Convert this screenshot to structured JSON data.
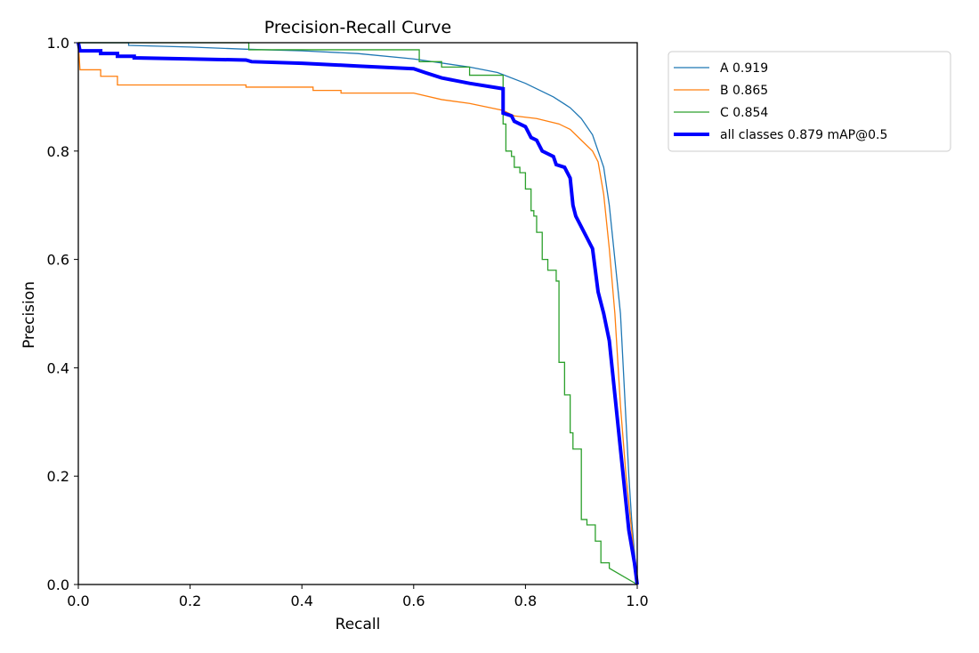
{
  "chart_data": {
    "type": "line",
    "title": "Precision-Recall Curve",
    "xlabel": "Recall",
    "ylabel": "Precision",
    "xlim": [
      0,
      1
    ],
    "ylim": [
      0,
      1
    ],
    "x_ticks": [
      "0.0",
      "0.2",
      "0.4",
      "0.6",
      "0.8",
      "1.0"
    ],
    "y_ticks": [
      "0.0",
      "0.2",
      "0.4",
      "0.6",
      "0.8",
      "1.0"
    ],
    "grid": false,
    "legend_position": "outside-right-top",
    "series": [
      {
        "name": "A 0.919",
        "color": "#1f77b4",
        "width": 1.3,
        "points": [
          [
            0,
            1.0
          ],
          [
            0.09,
            1.0
          ],
          [
            0.09,
            0.995
          ],
          [
            0.2,
            0.992
          ],
          [
            0.3,
            0.988
          ],
          [
            0.4,
            0.985
          ],
          [
            0.5,
            0.98
          ],
          [
            0.6,
            0.97
          ],
          [
            0.7,
            0.955
          ],
          [
            0.75,
            0.945
          ],
          [
            0.8,
            0.925
          ],
          [
            0.85,
            0.9
          ],
          [
            0.88,
            0.88
          ],
          [
            0.9,
            0.86
          ],
          [
            0.92,
            0.83
          ],
          [
            0.93,
            0.8
          ],
          [
            0.94,
            0.77
          ],
          [
            0.95,
            0.7
          ],
          [
            0.96,
            0.6
          ],
          [
            0.97,
            0.5
          ],
          [
            0.975,
            0.4
          ],
          [
            0.98,
            0.3
          ],
          [
            0.985,
            0.2
          ],
          [
            0.99,
            0.12
          ],
          [
            0.995,
            0.06
          ],
          [
            1.0,
            0.0
          ]
        ]
      },
      {
        "name": "B 0.865",
        "color": "#ff7f0e",
        "width": 1.3,
        "points": [
          [
            0,
            1.0
          ],
          [
            0.003,
            0.95
          ],
          [
            0.04,
            0.95
          ],
          [
            0.04,
            0.938
          ],
          [
            0.07,
            0.938
          ],
          [
            0.07,
            0.922
          ],
          [
            0.3,
            0.922
          ],
          [
            0.3,
            0.918
          ],
          [
            0.42,
            0.918
          ],
          [
            0.42,
            0.912
          ],
          [
            0.47,
            0.912
          ],
          [
            0.47,
            0.907
          ],
          [
            0.6,
            0.907
          ],
          [
            0.65,
            0.895
          ],
          [
            0.7,
            0.888
          ],
          [
            0.76,
            0.875
          ],
          [
            0.78,
            0.865
          ],
          [
            0.82,
            0.86
          ],
          [
            0.86,
            0.85
          ],
          [
            0.88,
            0.84
          ],
          [
            0.9,
            0.82
          ],
          [
            0.92,
            0.8
          ],
          [
            0.93,
            0.78
          ],
          [
            0.94,
            0.72
          ],
          [
            0.95,
            0.62
          ],
          [
            0.96,
            0.5
          ],
          [
            0.97,
            0.33
          ],
          [
            0.98,
            0.2
          ],
          [
            0.99,
            0.1
          ],
          [
            1.0,
            0.0
          ]
        ]
      },
      {
        "name": "C 0.854",
        "color": "#2ca02c",
        "width": 1.3,
        "points": [
          [
            0,
            1.0
          ],
          [
            0.305,
            1.0
          ],
          [
            0.305,
            0.987
          ],
          [
            0.61,
            0.987
          ],
          [
            0.61,
            0.965
          ],
          [
            0.65,
            0.965
          ],
          [
            0.65,
            0.955
          ],
          [
            0.7,
            0.955
          ],
          [
            0.7,
            0.94
          ],
          [
            0.76,
            0.94
          ],
          [
            0.76,
            0.85
          ],
          [
            0.765,
            0.85
          ],
          [
            0.765,
            0.8
          ],
          [
            0.775,
            0.8
          ],
          [
            0.775,
            0.79
          ],
          [
            0.78,
            0.79
          ],
          [
            0.78,
            0.77
          ],
          [
            0.79,
            0.77
          ],
          [
            0.79,
            0.76
          ],
          [
            0.8,
            0.76
          ],
          [
            0.8,
            0.73
          ],
          [
            0.81,
            0.73
          ],
          [
            0.81,
            0.69
          ],
          [
            0.815,
            0.69
          ],
          [
            0.815,
            0.68
          ],
          [
            0.82,
            0.68
          ],
          [
            0.82,
            0.65
          ],
          [
            0.83,
            0.65
          ],
          [
            0.83,
            0.6
          ],
          [
            0.84,
            0.6
          ],
          [
            0.84,
            0.58
          ],
          [
            0.855,
            0.58
          ],
          [
            0.855,
            0.56
          ],
          [
            0.86,
            0.56
          ],
          [
            0.86,
            0.41
          ],
          [
            0.87,
            0.41
          ],
          [
            0.87,
            0.35
          ],
          [
            0.88,
            0.35
          ],
          [
            0.88,
            0.28
          ],
          [
            0.885,
            0.28
          ],
          [
            0.885,
            0.25
          ],
          [
            0.9,
            0.25
          ],
          [
            0.9,
            0.12
          ],
          [
            0.91,
            0.12
          ],
          [
            0.91,
            0.11
          ],
          [
            0.925,
            0.11
          ],
          [
            0.925,
            0.08
          ],
          [
            0.935,
            0.08
          ],
          [
            0.935,
            0.04
          ],
          [
            0.95,
            0.04
          ],
          [
            0.95,
            0.03
          ],
          [
            1.0,
            0.0
          ]
        ]
      },
      {
        "name": "all classes 0.879 mAP@0.5",
        "color": "#0000ff",
        "width": 4,
        "points": [
          [
            0,
            1.0
          ],
          [
            0.003,
            0.985
          ],
          [
            0.04,
            0.985
          ],
          [
            0.04,
            0.98
          ],
          [
            0.07,
            0.98
          ],
          [
            0.07,
            0.975
          ],
          [
            0.1,
            0.975
          ],
          [
            0.1,
            0.972
          ],
          [
            0.2,
            0.97
          ],
          [
            0.3,
            0.968
          ],
          [
            0.31,
            0.965
          ],
          [
            0.4,
            0.962
          ],
          [
            0.5,
            0.957
          ],
          [
            0.6,
            0.952
          ],
          [
            0.62,
            0.945
          ],
          [
            0.65,
            0.935
          ],
          [
            0.7,
            0.925
          ],
          [
            0.76,
            0.915
          ],
          [
            0.76,
            0.87
          ],
          [
            0.775,
            0.865
          ],
          [
            0.78,
            0.855
          ],
          [
            0.8,
            0.845
          ],
          [
            0.81,
            0.825
          ],
          [
            0.82,
            0.82
          ],
          [
            0.83,
            0.8
          ],
          [
            0.85,
            0.79
          ],
          [
            0.855,
            0.775
          ],
          [
            0.87,
            0.77
          ],
          [
            0.88,
            0.75
          ],
          [
            0.885,
            0.7
          ],
          [
            0.89,
            0.68
          ],
          [
            0.9,
            0.66
          ],
          [
            0.91,
            0.64
          ],
          [
            0.92,
            0.62
          ],
          [
            0.925,
            0.58
          ],
          [
            0.93,
            0.54
          ],
          [
            0.94,
            0.5
          ],
          [
            0.95,
            0.45
          ],
          [
            0.955,
            0.4
          ],
          [
            0.96,
            0.35
          ],
          [
            0.965,
            0.3
          ],
          [
            0.97,
            0.25
          ],
          [
            0.975,
            0.2
          ],
          [
            0.98,
            0.15
          ],
          [
            0.985,
            0.1
          ],
          [
            0.99,
            0.07
          ],
          [
            0.995,
            0.04
          ],
          [
            1.0,
            0.0
          ]
        ]
      }
    ]
  }
}
